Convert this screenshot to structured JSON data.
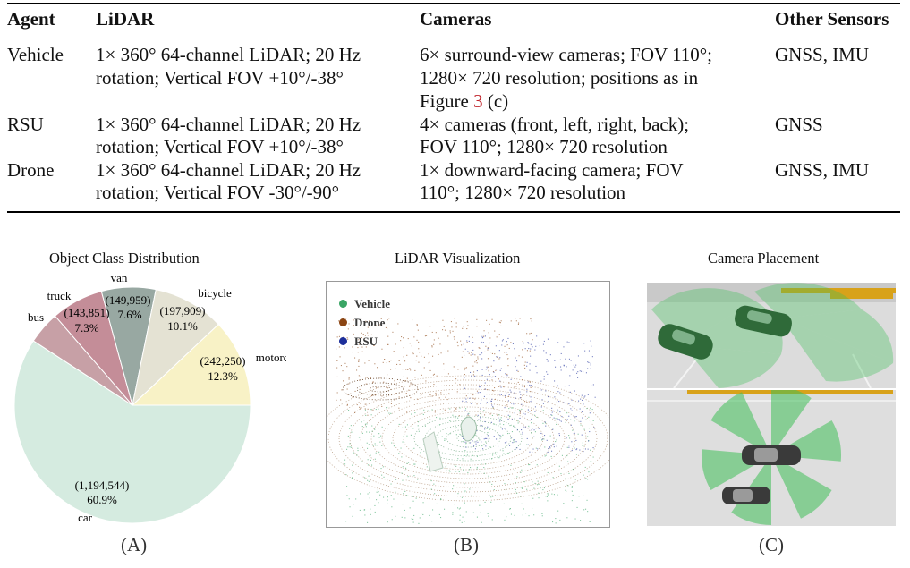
{
  "table": {
    "headers": [
      "Agent",
      "LiDAR",
      "Cameras",
      "Other Sensors"
    ],
    "rows": [
      {
        "agent": "Vehicle",
        "lidar": [
          "1× 360° 64-channel LiDAR; 20 Hz",
          "rotation; Vertical FOV +10°/-38°"
        ],
        "cameras": [
          "6× surround-view cameras; FOV 110°;",
          "1280× 720 resolution; positions as in"
        ],
        "cameras_line3_pre": "Figure ",
        "cameras_line3_ref": "3",
        "cameras_line3_post": " (c)",
        "other": "GNSS, IMU"
      },
      {
        "agent": "RSU",
        "lidar": [
          "1× 360° 64-channel LiDAR; 20 Hz",
          "rotation; Vertical FOV +10°/-38°"
        ],
        "cameras": [
          "4× cameras (front, left, right, back);",
          "FOV 110°; 1280× 720 resolution"
        ],
        "other": "GNSS"
      },
      {
        "agent": "Drone",
        "lidar": [
          "1× 360° 64-channel LiDAR; 20 Hz",
          "rotation; Vertical FOV -30°/-90°"
        ],
        "cameras": [
          "1× downward-facing camera; FOV",
          "110°; 1280× 720 resolution"
        ],
        "other": "GNSS, IMU"
      }
    ]
  },
  "figures": {
    "a": {
      "title": "Object Class Distribution",
      "label": "(A)",
      "chart_data": {
        "type": "pie",
        "title": "Object Class Distribution",
        "slices": [
          {
            "name": "car",
            "count": "(1,194,544)",
            "value": 1194544,
            "percent": "60.9%",
            "color": "#d5ebe0"
          },
          {
            "name": "bus",
            "count": "",
            "value": 0,
            "percent": "",
            "color": "#c7a0a6"
          },
          {
            "name": "truck",
            "count": "(143,851)",
            "value": 143851,
            "percent": "7.3%",
            "color": "#c48d98"
          },
          {
            "name": "van",
            "count": "(149,959)",
            "value": 149959,
            "percent": "7.6%",
            "color": "#98a8a2"
          },
          {
            "name": "bicycle",
            "count": "(197,909)",
            "value": 197909,
            "percent": "10.1%",
            "color": "#e4e2d3"
          },
          {
            "name": "motorcycle",
            "count": "(242,250)",
            "value": 242250,
            "percent": "12.3%",
            "color": "#f8f2c6"
          }
        ]
      }
    },
    "b": {
      "title": "LiDAR Visualization",
      "label": "(B)",
      "legend": [
        {
          "name": "Vehicle",
          "color": "#3aa565"
        },
        {
          "name": "Drone",
          "color": "#8b4513"
        },
        {
          "name": "RSU",
          "color": "#1e2f9a"
        }
      ]
    },
    "c": {
      "title": "Camera Placement",
      "label": "(C)"
    }
  }
}
